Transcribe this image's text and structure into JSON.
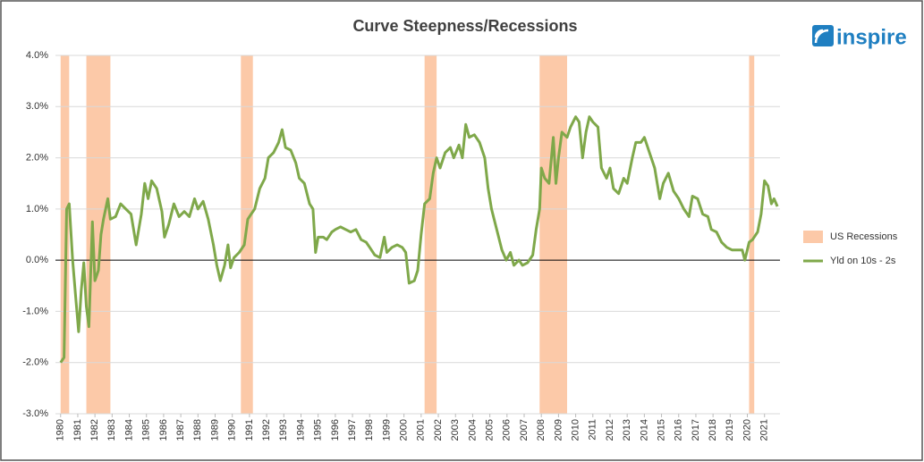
{
  "logo": "inspire",
  "chart_data": {
    "type": "line",
    "title": "Curve Steepness/Recessions",
    "xlim": [
      1979.7,
      2021.9
    ],
    "xticks": [
      1980,
      1981,
      1982,
      1983,
      1984,
      1985,
      1986,
      1987,
      1988,
      1989,
      1990,
      1991,
      1992,
      1993,
      1994,
      1995,
      1996,
      1997,
      1998,
      1999,
      2000,
      2001,
      2002,
      2003,
      2004,
      2005,
      2006,
      2007,
      2008,
      2009,
      2010,
      2011,
      2012,
      2013,
      2014,
      2015,
      2016,
      2017,
      2018,
      2019,
      2020,
      2021
    ],
    "ylim": [
      -3,
      4
    ],
    "yticks": [
      {
        "value": -3,
        "label": "-3.0%"
      },
      {
        "value": -2,
        "label": "-2.0%"
      },
      {
        "value": -1,
        "label": "-1.0%"
      },
      {
        "value": 0,
        "label": "0.0%"
      },
      {
        "value": 1,
        "label": "1.0%"
      },
      {
        "value": 2,
        "label": "2.0%"
      },
      {
        "value": 3,
        "label": "3.0%"
      },
      {
        "value": 4,
        "label": "4.0%"
      }
    ],
    "grid": true,
    "recessions": {
      "name": "US Recessions",
      "color": "#fcc9a8",
      "periods": [
        [
          1980.0,
          1980.5
        ],
        [
          1981.5,
          1982.9
        ],
        [
          1990.5,
          1991.2
        ],
        [
          2001.2,
          2001.9
        ],
        [
          2007.9,
          2009.5
        ],
        [
          2020.1,
          2020.4
        ]
      ]
    },
    "series": [
      {
        "name": "Yld on 10s - 2s",
        "color": "#7fa84a",
        "x": [
          1980.0,
          1980.2,
          1980.35,
          1980.5,
          1980.7,
          1980.9,
          1981.05,
          1981.2,
          1981.35,
          1981.5,
          1981.65,
          1981.85,
          1982.0,
          1982.2,
          1982.35,
          1982.5,
          1982.75,
          1982.9,
          1983.2,
          1983.5,
          1983.8,
          1984.1,
          1984.4,
          1984.7,
          1984.9,
          1985.1,
          1985.3,
          1985.6,
          1985.9,
          1986.05,
          1986.3,
          1986.6,
          1986.9,
          1987.2,
          1987.5,
          1987.8,
          1988.0,
          1988.3,
          1988.6,
          1988.9,
          1989.1,
          1989.3,
          1989.55,
          1989.75,
          1989.9,
          1990.1,
          1990.4,
          1990.7,
          1990.9,
          1991.1,
          1991.3,
          1991.6,
          1991.9,
          1992.1,
          1992.4,
          1992.7,
          1992.9,
          1993.1,
          1993.4,
          1993.7,
          1993.9,
          1994.2,
          1994.5,
          1994.7,
          1994.85,
          1995.0,
          1995.3,
          1995.5,
          1995.8,
          1996.0,
          1996.3,
          1996.6,
          1996.9,
          1997.2,
          1997.5,
          1997.8,
          1998.0,
          1998.3,
          1998.6,
          1998.85,
          1999.0,
          1999.3,
          1999.6,
          1999.9,
          2000.1,
          2000.3,
          2000.6,
          2000.8,
          2001.0,
          2001.2,
          2001.5,
          2001.7,
          2001.9,
          2002.1,
          2002.4,
          2002.7,
          2002.9,
          2003.2,
          2003.4,
          2003.6,
          2003.8,
          2004.1,
          2004.4,
          2004.7,
          2004.9,
          2005.1,
          2005.4,
          2005.7,
          2005.95,
          2006.2,
          2006.4,
          2006.7,
          2006.9,
          2007.2,
          2007.5,
          2007.7,
          2007.9,
          2008.0,
          2008.2,
          2008.45,
          2008.7,
          2008.85,
          2009.0,
          2009.2,
          2009.5,
          2009.7,
          2010.0,
          2010.2,
          2010.4,
          2010.6,
          2010.8,
          2011.0,
          2011.3,
          2011.5,
          2011.8,
          2012.0,
          2012.2,
          2012.5,
          2012.8,
          2013.0,
          2013.3,
          2013.5,
          2013.8,
          2014.0,
          2014.3,
          2014.6,
          2014.9,
          2015.1,
          2015.4,
          2015.7,
          2016.0,
          2016.3,
          2016.6,
          2016.8,
          2017.1,
          2017.4,
          2017.7,
          2017.9,
          2018.2,
          2018.5,
          2018.8,
          2019.1,
          2019.4,
          2019.7,
          2019.85,
          2020.1,
          2020.3,
          2020.6,
          2020.8,
          2021.0,
          2021.2,
          2021.4,
          2021.55,
          2021.75
        ],
        "values": [
          -2.0,
          -1.9,
          1.0,
          1.1,
          0.0,
          -0.8,
          -1.4,
          -0.6,
          -0.05,
          -0.9,
          -1.3,
          0.75,
          -0.4,
          -0.2,
          0.5,
          0.8,
          1.2,
          0.8,
          0.85,
          1.1,
          1.0,
          0.9,
          0.3,
          0.9,
          1.5,
          1.2,
          1.55,
          1.4,
          0.95,
          0.45,
          0.7,
          1.1,
          0.85,
          0.95,
          0.85,
          1.2,
          1.0,
          1.15,
          0.8,
          0.3,
          -0.1,
          -0.4,
          -0.1,
          0.3,
          -0.15,
          0.05,
          0.15,
          0.3,
          0.8,
          0.9,
          1.0,
          1.4,
          1.6,
          2.0,
          2.1,
          2.3,
          2.55,
          2.2,
          2.15,
          1.9,
          1.6,
          1.5,
          1.1,
          1.0,
          0.15,
          0.45,
          0.45,
          0.4,
          0.55,
          0.6,
          0.65,
          0.6,
          0.55,
          0.6,
          0.4,
          0.35,
          0.25,
          0.1,
          0.05,
          0.45,
          0.15,
          0.25,
          0.3,
          0.25,
          0.15,
          -0.45,
          -0.4,
          -0.2,
          0.5,
          1.1,
          1.2,
          1.7,
          2.0,
          1.8,
          2.1,
          2.2,
          2.0,
          2.25,
          2.0,
          2.65,
          2.4,
          2.45,
          2.3,
          2.0,
          1.4,
          1.0,
          0.6,
          0.2,
          0.0,
          0.15,
          -0.1,
          0.0,
          -0.1,
          -0.05,
          0.1,
          0.6,
          1.0,
          1.8,
          1.6,
          1.5,
          2.4,
          1.5,
          2.0,
          2.5,
          2.4,
          2.6,
          2.8,
          2.7,
          2.0,
          2.5,
          2.8,
          2.7,
          2.6,
          1.8,
          1.6,
          1.8,
          1.4,
          1.3,
          1.6,
          1.5,
          2.0,
          2.3,
          2.3,
          2.4,
          2.1,
          1.8,
          1.2,
          1.5,
          1.7,
          1.35,
          1.2,
          1.0,
          0.85,
          1.25,
          1.2,
          0.9,
          0.85,
          0.6,
          0.55,
          0.35,
          0.25,
          0.2,
          0.2,
          0.2,
          0.0,
          0.35,
          0.4,
          0.55,
          0.9,
          1.55,
          1.45,
          1.1,
          1.2,
          1.05
        ]
      }
    ]
  }
}
